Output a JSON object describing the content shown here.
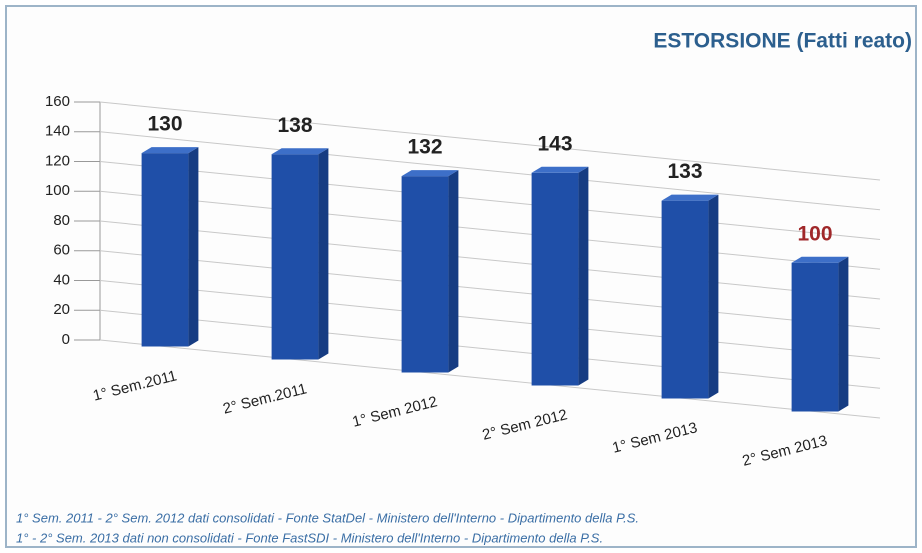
{
  "chart_data": {
    "type": "bar3d",
    "title": "ESTORSIONE (Fatti reato)",
    "categories": [
      "1° Sem.2011",
      "2° Sem.2011",
      "1° Sem 2012",
      "2° Sem 2012",
      "1° Sem 2013",
      "2° Sem 2013"
    ],
    "values": [
      130,
      138,
      132,
      143,
      133,
      100
    ],
    "color": "#1f4fa8",
    "value_label_colors": [
      "#222222",
      "#222222",
      "#222222",
      "#222222",
      "#222222",
      "#a0282a"
    ],
    "ylim": [
      0,
      160
    ],
    "yticks": [
      0,
      20,
      40,
      60,
      80,
      100,
      120,
      140,
      160
    ],
    "grid": true,
    "notes": [
      "1° Sem. 2011 - 2° Sem. 2012 dati consolidati - Fonte StatDel - Ministero dell'Interno - Dipartimento della P.S.",
      "1° - 2° Sem. 2013 dati non consolidati - Fonte FastSDI - Ministero dell'Interno - Dipartimento della P.S."
    ]
  }
}
